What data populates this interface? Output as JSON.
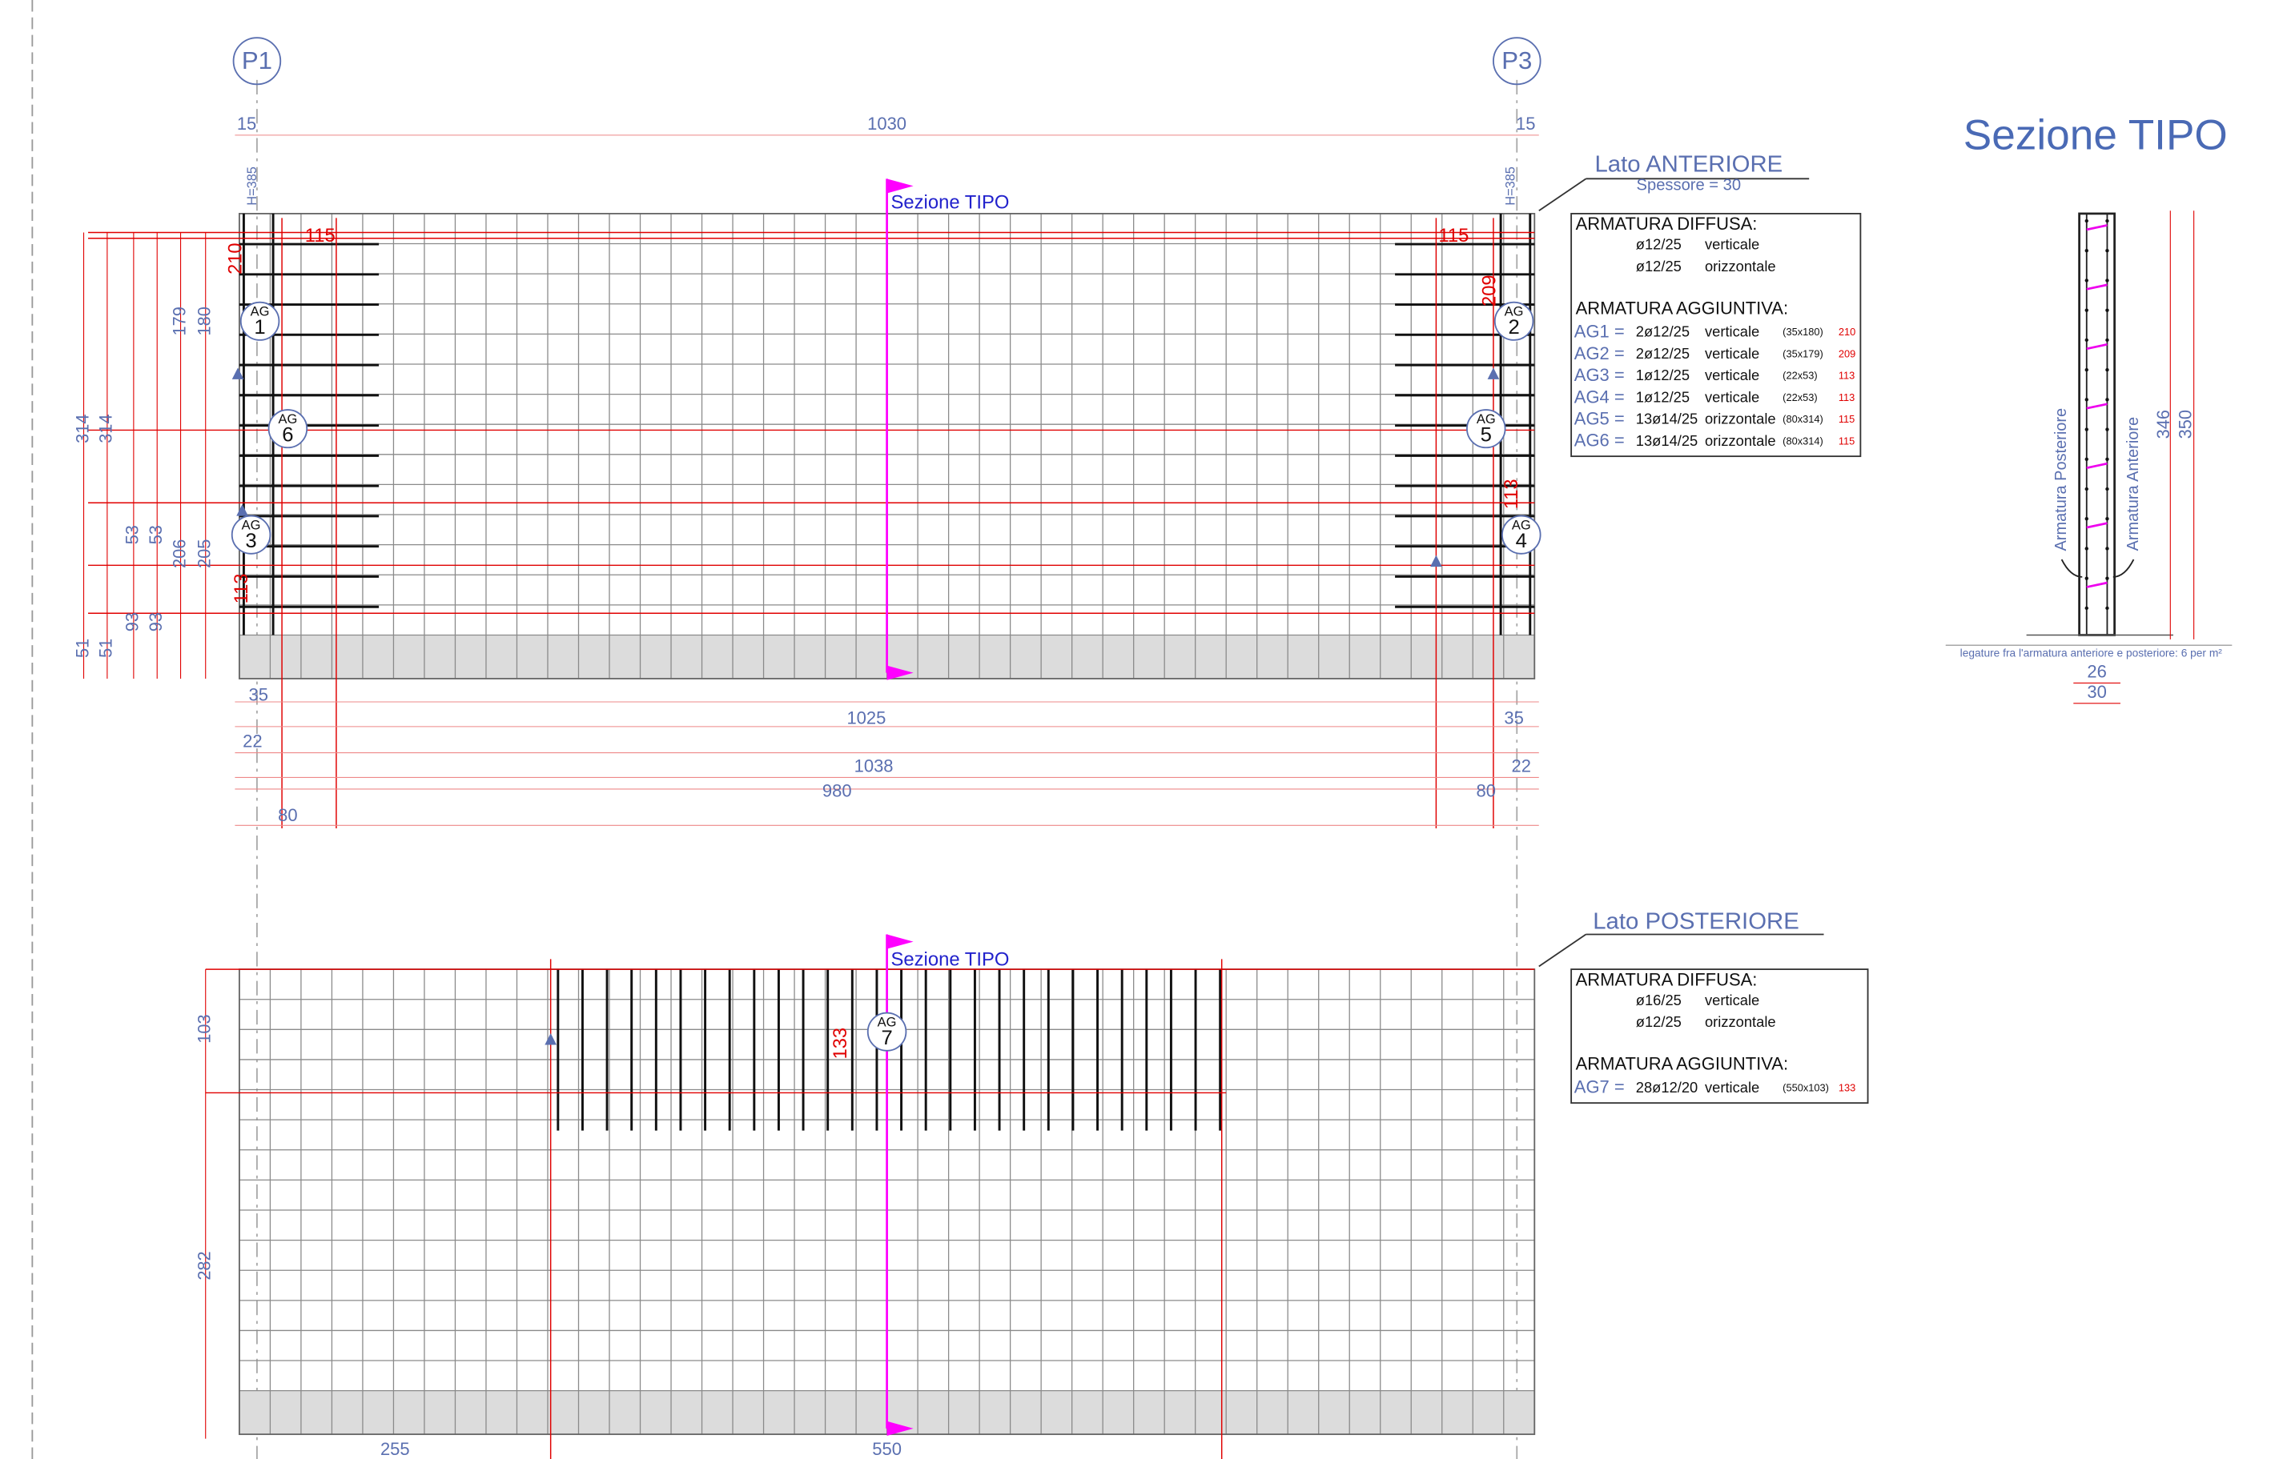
{
  "pillars": [
    "P1",
    "P3"
  ],
  "front": {
    "title": "Lato ANTERIORE",
    "thickness": "Spessore = 30",
    "section": "Sezione TIPO",
    "dims": [
      "15",
      "1030",
      "15",
      "H=385",
      "H=385",
      "314",
      "314",
      "179",
      "180",
      "53",
      "53",
      "206",
      "205",
      "93",
      "93",
      "51",
      "51",
      "35",
      "1025",
      "22",
      "1038",
      "980",
      "80",
      "35",
      "22",
      "80"
    ],
    "red_dims": [
      "115",
      "210",
      "115",
      "209",
      "113",
      "113"
    ],
    "markers": [
      {
        "tag": "AG",
        "num": "1"
      },
      {
        "tag": "AG",
        "num": "2"
      },
      {
        "tag": "AG",
        "num": "6"
      },
      {
        "tag": "AG",
        "num": "5"
      },
      {
        "tag": "AG",
        "num": "3"
      },
      {
        "tag": "AG",
        "num": "4"
      }
    ],
    "legend": {
      "diffuse_title": "ARMATURA DIFFUSA:",
      "diffuse": [
        [
          "ø12/25",
          "verticale"
        ],
        [
          "ø12/25",
          "orizzontale"
        ]
      ],
      "extra_title": "ARMATURA AGGIUNTIVA:",
      "extra": [
        [
          "AG1 =",
          "2ø12/25",
          "verticale",
          "(35x180)",
          "210"
        ],
        [
          "AG2 =",
          "2ø12/25",
          "verticale",
          "(35x179)",
          "209"
        ],
        [
          "AG3 =",
          "1ø12/25",
          "verticale",
          "(22x53)",
          "113"
        ],
        [
          "AG4 =",
          "1ø12/25",
          "verticale",
          "(22x53)",
          "113"
        ],
        [
          "AG5 =",
          "13ø14/25",
          "orizzontale",
          "(80x314)",
          "115"
        ],
        [
          "AG6 =",
          "13ø14/25",
          "orizzontale",
          "(80x314)",
          "115"
        ]
      ]
    }
  },
  "back": {
    "title": "Lato POSTERIORE",
    "section": "Sezione TIPO",
    "dims": [
      "103",
      "282",
      "255",
      "550"
    ],
    "red_dims": [
      "133"
    ],
    "markers": [
      {
        "tag": "AG",
        "num": "7"
      }
    ],
    "legend": {
      "diffuse_title": "ARMATURA DIFFUSA:",
      "diffuse": [
        [
          "ø16/25",
          "verticale"
        ],
        [
          "ø12/25",
          "orizzontale"
        ]
      ],
      "extra_title": "ARMATURA AGGIUNTIVA:",
      "extra": [
        [
          "AG7 =",
          "28ø12/20",
          "verticale",
          "(550x103)",
          "133"
        ]
      ]
    }
  },
  "section": {
    "title": "Sezione TIPO",
    "rear": "Armatura Posteriore",
    "front": "Armatura Anteriore",
    "dims": [
      "346",
      "350",
      "26",
      "30"
    ],
    "note": "legature fra l'armatura anteriore e posteriore: 6 per m²"
  }
}
